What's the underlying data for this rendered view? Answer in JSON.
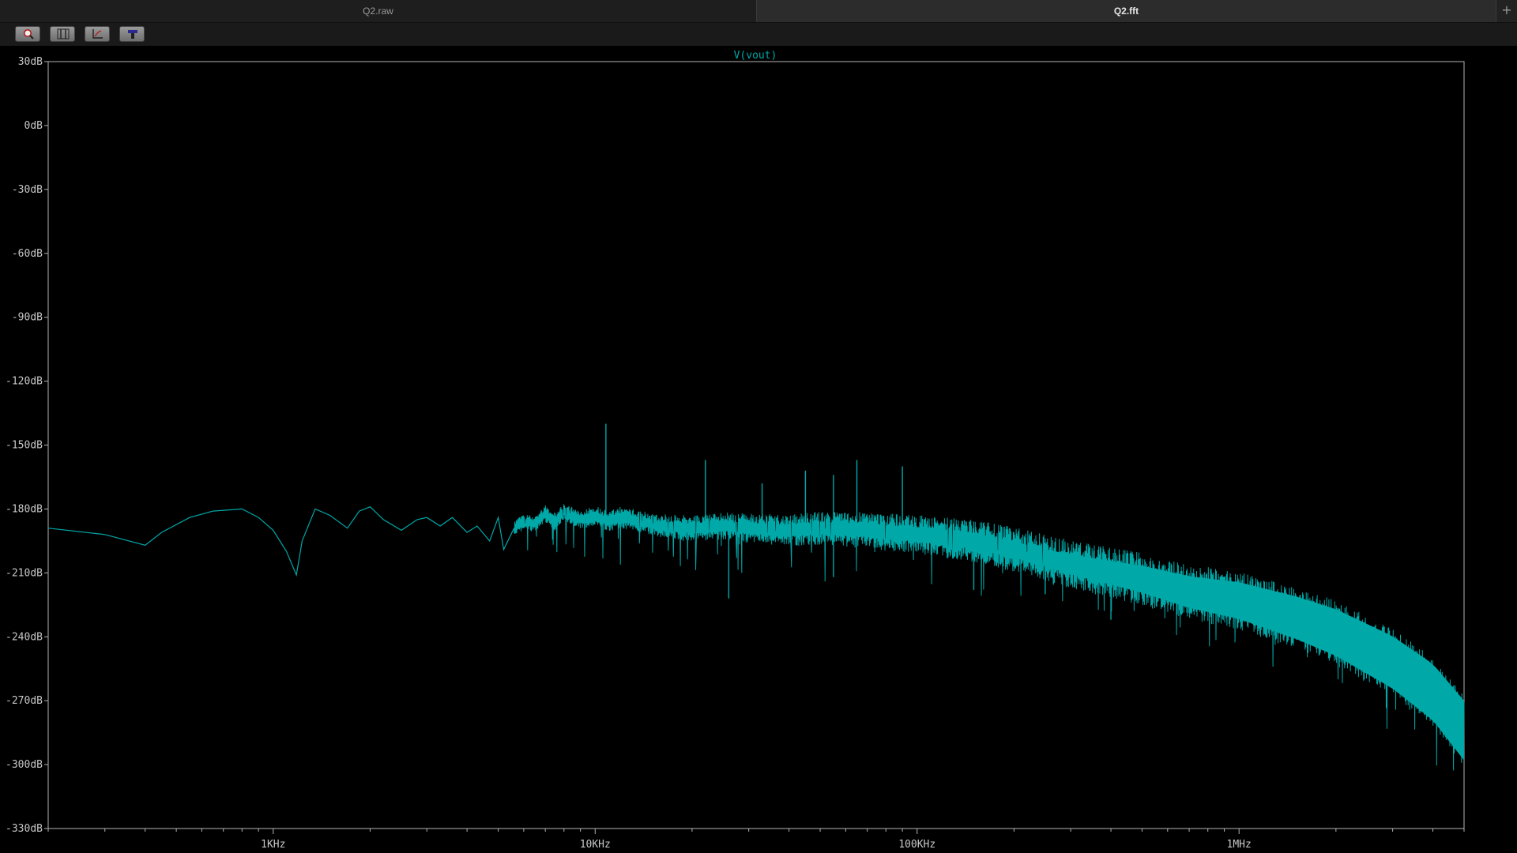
{
  "tabs": [
    {
      "label": "Q2.raw",
      "active": false
    },
    {
      "label": "Q2.fft",
      "active": true
    }
  ],
  "add_tab_label": "+",
  "toolbar": [
    {
      "icon": "zoom-icon"
    },
    {
      "icon": "cursor-measure-icon"
    },
    {
      "icon": "axis-settings-icon"
    },
    {
      "icon": "probe-icon"
    }
  ],
  "colors": {
    "trace": "#00a8a8",
    "axis": "#b4b4b4",
    "label": "#c8c8c8",
    "title": "#00a8a8"
  },
  "chart_data": {
    "type": "line",
    "title": "V(vout)",
    "xscale": "log",
    "xlim": [
      200,
      5000000
    ],
    "ylim": [
      -330,
      30
    ],
    "x_ticks": [
      {
        "value": 1000,
        "label": "1KHz"
      },
      {
        "value": 10000,
        "label": "10KHz"
      },
      {
        "value": 100000,
        "label": "100KHz"
      },
      {
        "value": 1000000,
        "label": "1MHz"
      }
    ],
    "y_ticks": [
      {
        "value": 30,
        "label": "30dB"
      },
      {
        "value": 0,
        "label": "0dB"
      },
      {
        "value": -30,
        "label": "-30dB"
      },
      {
        "value": -60,
        "label": "-60dB"
      },
      {
        "value": -90,
        "label": "-90dB"
      },
      {
        "value": -120,
        "label": "-120dB"
      },
      {
        "value": -150,
        "label": "-150dB"
      },
      {
        "value": -180,
        "label": "-180dB"
      },
      {
        "value": -210,
        "label": "-210dB"
      },
      {
        "value": -240,
        "label": "-240dB"
      },
      {
        "value": -270,
        "label": "-270dB"
      },
      {
        "value": -300,
        "label": "-300dB"
      },
      {
        "value": -330,
        "label": "-330dB"
      }
    ],
    "grid": false,
    "series": [
      {
        "points": [
          [
            200,
            -189
          ],
          [
            300,
            -192
          ],
          [
            400,
            -197
          ],
          [
            450,
            -191
          ],
          [
            550,
            -184
          ],
          [
            650,
            -181
          ],
          [
            800,
            -180
          ],
          [
            900,
            -184
          ],
          [
            1000,
            -190
          ],
          [
            1100,
            -200
          ],
          [
            1180,
            -211
          ],
          [
            1230,
            -195
          ],
          [
            1350,
            -180
          ],
          [
            1500,
            -183
          ],
          [
            1700,
            -189
          ],
          [
            1850,
            -181
          ],
          [
            2000,
            -179
          ],
          [
            2200,
            -185
          ],
          [
            2500,
            -190
          ],
          [
            2800,
            -185
          ],
          [
            3000,
            -184
          ],
          [
            3300,
            -188
          ],
          [
            3600,
            -184
          ],
          [
            4000,
            -191
          ],
          [
            4300,
            -188
          ],
          [
            4700,
            -195
          ],
          [
            5000,
            -184
          ],
          [
            5200,
            -199
          ],
          [
            5600,
            -189
          ],
          [
            6000,
            -186
          ],
          [
            6500,
            -187
          ],
          [
            7000,
            -182
          ],
          [
            7500,
            -186
          ],
          [
            8000,
            -181
          ],
          [
            9000,
            -185
          ],
          [
            10000,
            -183
          ],
          [
            11000,
            -186
          ],
          [
            12000,
            -184
          ],
          [
            14000,
            -186
          ],
          [
            16000,
            -188
          ],
          [
            20000,
            -189
          ],
          [
            25000,
            -188
          ],
          [
            30000,
            -189
          ],
          [
            40000,
            -190
          ],
          [
            50000,
            -189
          ],
          [
            70000,
            -190
          ],
          [
            100000,
            -192
          ],
          [
            150000,
            -195
          ],
          [
            200000,
            -199
          ],
          [
            300000,
            -206
          ],
          [
            500000,
            -213
          ],
          [
            700000,
            -219
          ],
          [
            1000000,
            -223
          ],
          [
            1500000,
            -231
          ],
          [
            2000000,
            -238
          ],
          [
            3000000,
            -252
          ],
          [
            4000000,
            -266
          ],
          [
            5000000,
            -284
          ]
        ],
        "spikes": [
          [
            10800,
            -140
          ],
          [
            22000,
            -157
          ],
          [
            33000,
            -168
          ],
          [
            45000,
            -162
          ],
          [
            55000,
            -164
          ],
          [
            65000,
            -157
          ],
          [
            90000,
            -160
          ],
          [
            26000,
            -222
          ],
          [
            55000,
            -212
          ],
          [
            150000,
            -218
          ],
          [
            250000,
            -220
          ],
          [
            400000,
            -232
          ]
        ]
      }
    ]
  }
}
